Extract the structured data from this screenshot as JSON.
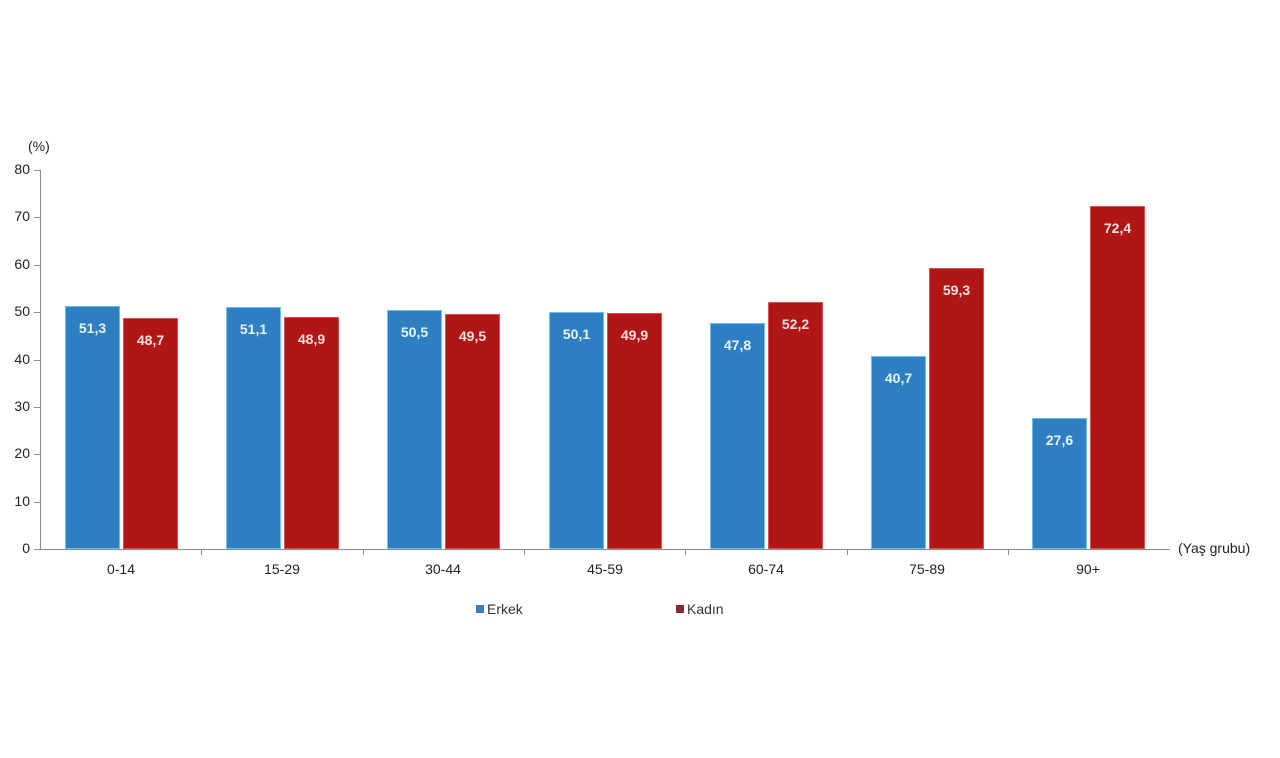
{
  "chart_data": {
    "type": "bar",
    "title": "",
    "ylabel": "(%)",
    "xlabel": "(Yaş grubu)",
    "ylim": [
      0,
      80
    ],
    "yticks": [
      0,
      10,
      20,
      30,
      40,
      50,
      60,
      70,
      80
    ],
    "grid": false,
    "legend_position": "bottom",
    "categories": [
      "0-14",
      "15-29",
      "30-44",
      "45-59",
      "60-74",
      "75-89",
      "90+"
    ],
    "series": [
      {
        "name": "Erkek",
        "color": "#2e7fc2",
        "values": [
          51.3,
          51.1,
          50.5,
          50.1,
          47.8,
          40.7,
          27.6
        ],
        "labels": [
          "51,3",
          "51,1",
          "50,5",
          "50,1",
          "47,8",
          "40,7",
          "27,6"
        ]
      },
      {
        "name": "Kadın",
        "color": "#b01616",
        "values": [
          48.7,
          48.9,
          49.5,
          49.9,
          52.2,
          59.3,
          72.4
        ],
        "labels": [
          "48,7",
          "48,9",
          "49,5",
          "49,9",
          "52,2",
          "59,3",
          "72,4"
        ]
      }
    ]
  },
  "axis": {
    "unit_label": "(%)",
    "x_title": "(Yaş grubu)",
    "y_ticks": [
      "0",
      "10",
      "20",
      "30",
      "40",
      "50",
      "60",
      "70",
      "80"
    ]
  },
  "legend": {
    "erkek": "Erkek",
    "kadin": "Kadın"
  }
}
